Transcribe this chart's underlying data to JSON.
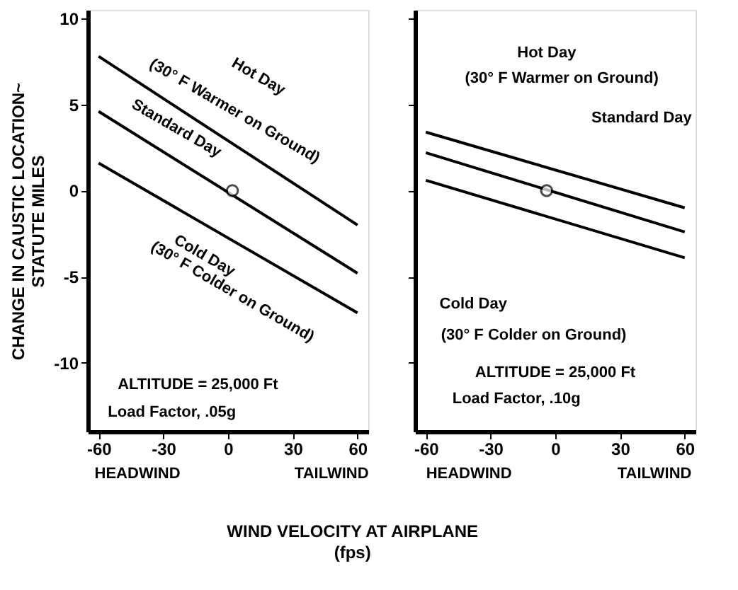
{
  "chart_data": [
    {
      "type": "line",
      "ylabel": "CHANGE IN CAUSTIC LOCATION~\nSTATUTE   MILES",
      "xlabel": "WIND VELOCITY AT AIRPLANE\n(fps)",
      "xlim": [
        -65,
        65
      ],
      "xticks": [
        -60,
        -30,
        0,
        30,
        60
      ],
      "ylim": [
        -14,
        10.5
      ],
      "yticks": [
        -10,
        -5,
        0,
        5,
        10
      ],
      "grid": false,
      "marker": "none",
      "line_style": "solid",
      "series": [
        {
          "color": "#000000",
          "x": [
            -60,
            60
          ],
          "values": [
            7.8,
            -2.0
          ]
        },
        {
          "color": "#000000",
          "x": [
            -60,
            60
          ],
          "values": [
            4.6,
            -4.8
          ]
        },
        {
          "color": "#000000",
          "x": [
            -60,
            60
          ],
          "values": [
            1.6,
            -7.1
          ]
        },
        {
          "type": "scatter",
          "marker": "circle",
          "color": "#000000",
          "x": [
            2
          ],
          "values": [
            0
          ]
        }
      ],
      "annotations": [
        "Hot Day",
        "(30° F Warmer on Ground)",
        "Standard Day",
        "Cold Day",
        "(30° F Colder on Ground)",
        "ALTITUDE = 25,000 Ft",
        "Load Factor, .05g",
        "HEADWIND",
        "TAILWIND"
      ]
    },
    {
      "type": "line",
      "xlim": [
        -65,
        65
      ],
      "xticks": [
        -60,
        -30,
        0,
        30,
        60
      ],
      "ylim": [
        -14,
        10.5
      ],
      "yticks": [
        -10,
        -5,
        0,
        5,
        10
      ],
      "tick_labels": "x",
      "grid": false,
      "marker": "none",
      "line_style": "solid",
      "series": [
        {
          "color": "#000000",
          "x": [
            -60,
            60
          ],
          "values": [
            3.4,
            -1.0
          ]
        },
        {
          "color": "#000000",
          "x": [
            -60,
            60
          ],
          "values": [
            2.2,
            -2.4
          ]
        },
        {
          "color": "#000000",
          "x": [
            -60,
            60
          ],
          "values": [
            0.6,
            -3.9
          ]
        },
        {
          "type": "scatter",
          "marker": "circle",
          "color": "#000000",
          "x": [
            -4
          ],
          "values": [
            0
          ]
        }
      ],
      "annotations": [
        "Hot Day",
        "(30° F Warmer on Ground)",
        "Standard Day",
        "Cold Day",
        "(30° F Colder on Ground)",
        "ALTITUDE = 25,000 Ft",
        "Load Factor, .10g",
        "HEADWIND",
        "TAILWIND"
      ]
    }
  ]
}
